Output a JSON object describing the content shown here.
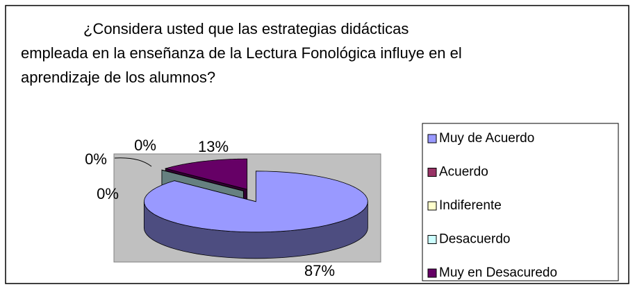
{
  "chart_data": {
    "type": "pie",
    "title": "¿Considera usted que las estrategias didácticas empleada en la enseñanza de la Lectura Fonológica influye en el aprendizaje de los alumnos?",
    "categories": [
      "Muy de Acuerdo",
      "Acuerdo",
      "Indiferente",
      "Desacuerdo",
      "Muy en Desacuredo"
    ],
    "values": [
      87,
      0,
      0,
      0,
      13
    ],
    "value_labels": [
      "87%",
      "0%",
      "0%",
      "0%",
      "13%"
    ],
    "colors": [
      "#9999ff",
      "#993366",
      "#ffffcc",
      "#ccffff",
      "#660066"
    ],
    "legend": "right"
  }
}
